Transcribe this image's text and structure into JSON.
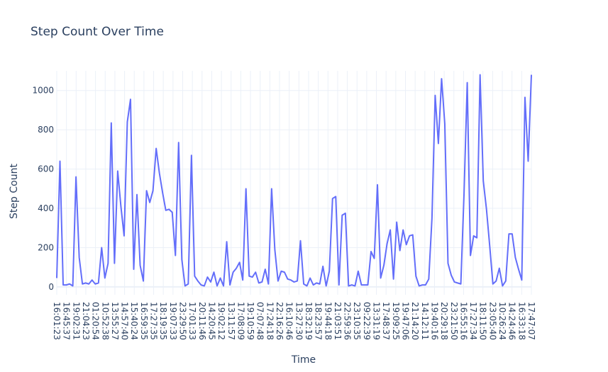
{
  "chart_data": {
    "type": "line",
    "title": "Step Count Over Time",
    "xlabel": "Time",
    "ylabel": "Step Count",
    "ylim": [
      -40,
      1100
    ],
    "y_ticks": [
      0,
      200,
      400,
      600,
      800,
      1000
    ],
    "grid": true,
    "legend": "none",
    "colors": {
      "line": "#636efa",
      "grid": "#ebf0f8",
      "text": "#2a3f5f"
    },
    "x_tick_labels": [
      "16:01:23",
      "16:45:37",
      "19:02:31",
      "21:04:23",
      "01:20:54",
      "10:52:38",
      "13:55:27",
      "14:57:40",
      "15:40:24",
      "16:59:35",
      "17:27:35",
      "18:19:35",
      "19:07:33",
      "23:29:50",
      "17:01:33",
      "20:11:46",
      "14:20:45",
      "19:02:12",
      "13:11:57",
      "17:08:09",
      "19:10:59",
      "07:07:48",
      "17:24:18",
      "22:16:26",
      "16:10:46",
      "13:27:30",
      "18:32:19",
      "18:23:57",
      "19:44:18",
      "21:03:51",
      "22:59:36",
      "23:10:35",
      "09:22:39",
      "13:31:19",
      "17:48:37",
      "19:09:25",
      "19:47:06",
      "21:14:20",
      "14:12:11",
      "19:40:16",
      "20:29:18",
      "23:21:50",
      "16:55:16",
      "17:27:34",
      "18:11:50",
      "23:05:40",
      "10:26:24",
      "14:24:46",
      "16:33:18",
      "17:47:07"
    ],
    "series": [
      {
        "values": [
          45,
          640,
          10,
          10,
          15,
          5,
          560,
          150,
          15,
          20,
          15,
          35,
          15,
          20,
          200,
          45,
          120,
          835,
          120,
          590,
          410,
          260,
          840,
          955,
          90,
          470,
          110,
          30,
          490,
          430,
          490,
          705,
          580,
          480,
          390,
          395,
          380,
          160,
          735,
          140,
          5,
          15,
          670,
          55,
          30,
          10,
          5,
          50,
          25,
          75,
          5,
          45,
          5,
          230,
          10,
          75,
          95,
          125,
          35,
          500,
          55,
          50,
          75,
          20,
          25,
          90,
          15,
          500,
          190,
          30,
          80,
          75,
          40,
          35,
          25,
          30,
          235,
          15,
          5,
          45,
          10,
          20,
          15,
          105,
          5,
          80,
          450,
          460,
          10,
          365,
          375,
          5,
          10,
          5,
          80,
          10,
          10,
          10,
          180,
          145,
          520,
          45,
          110,
          220,
          290,
          40,
          330,
          185,
          290,
          215,
          260,
          265,
          55,
          5,
          10,
          10,
          40,
          350,
          975,
          730,
          1060,
          830,
          120,
          60,
          25,
          20,
          15,
          475,
          1040,
          160,
          260,
          250,
          1080,
          540,
          395,
          210,
          15,
          30,
          95,
          5,
          30,
          270,
          270,
          150,
          90,
          35,
          965,
          640,
          1080
        ]
      }
    ]
  }
}
